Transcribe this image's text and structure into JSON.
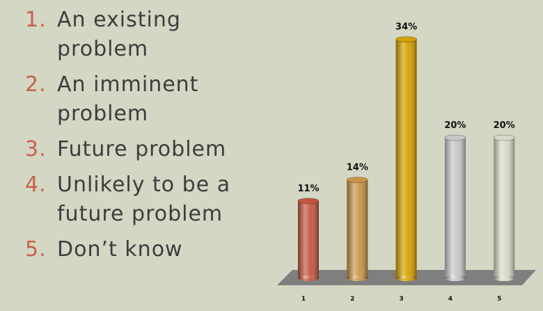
{
  "list": [
    {
      "number": "1.",
      "text": "An existing problem"
    },
    {
      "number": "2.",
      "text": "An imminent problem"
    },
    {
      "number": "3.",
      "text": "Future problem"
    },
    {
      "number": "4.",
      "text": "Unlikely to be a future problem"
    },
    {
      "number": "5.",
      "text": "Don’t know"
    }
  ],
  "chart_data": {
    "type": "bar",
    "categories": [
      "1",
      "2",
      "3",
      "4",
      "5"
    ],
    "values": [
      11,
      14,
      34,
      20,
      20
    ],
    "value_labels": [
      "11%",
      "14%",
      "34%",
      "20%",
      "20%"
    ],
    "colors": [
      "#c4553e",
      "#c89448",
      "#d4a000",
      "#c6c7c8",
      "#d6d9c6"
    ]
  }
}
